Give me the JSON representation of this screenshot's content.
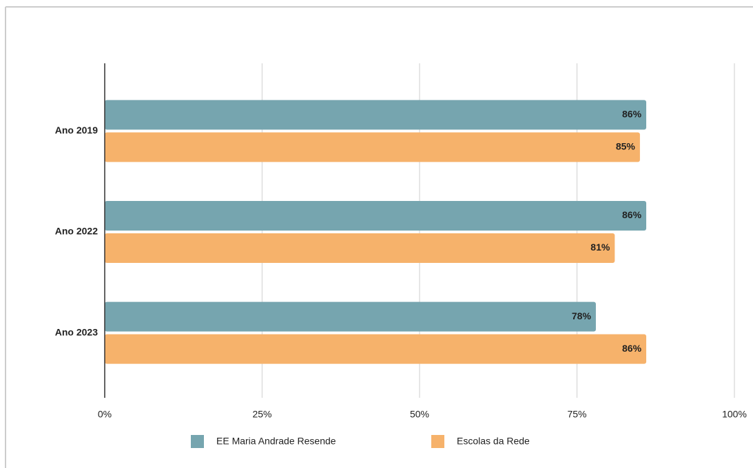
{
  "chart_data": {
    "type": "hbar",
    "categories": [
      "Ano 2019",
      "Ano 2022",
      "Ano 2023"
    ],
    "series": [
      {
        "name": "EE Maria Andrade Resende",
        "color": "#76a5af",
        "values": [
          86,
          86,
          78
        ],
        "value_labels": [
          "86%",
          "86%",
          "78%"
        ]
      },
      {
        "name": "Escolas da Rede",
        "color": "#f6b26b",
        "values": [
          85,
          81,
          86
        ],
        "value_labels": [
          "85%",
          "81%",
          "86%"
        ]
      }
    ],
    "xlim": [
      0,
      100
    ],
    "xticks": [
      {
        "value": 0,
        "label": "0%"
      },
      {
        "value": 25,
        "label": "25%"
      },
      {
        "value": 50,
        "label": "50%"
      },
      {
        "value": 75,
        "label": "75%"
      },
      {
        "value": 100,
        "label": "100%"
      }
    ],
    "grid": true,
    "legend": "bottom"
  }
}
